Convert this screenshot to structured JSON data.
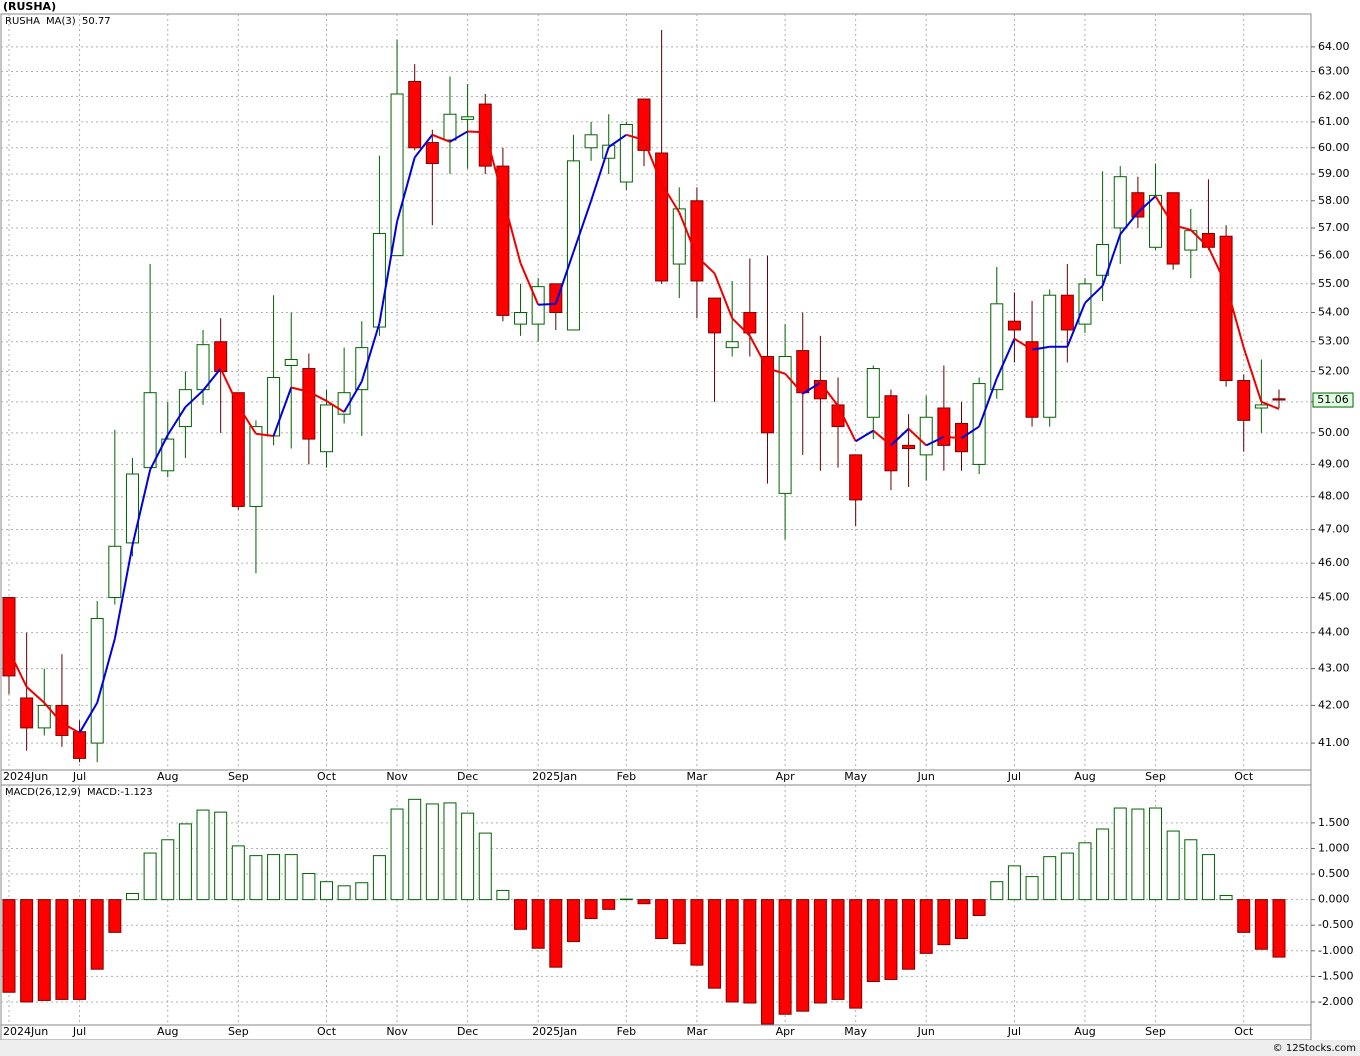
{
  "chart_data": [
    {
      "type": "candlestick",
      "title": "(RUSHA)",
      "symbol": "RUSHA",
      "log_scale": true,
      "grid": true,
      "up_color": "#006400",
      "down_color": "#ff0000",
      "symbol_color": "#008000",
      "last_label": "51.06",
      "categories": [
        "2024Jun",
        null,
        null,
        null,
        "Jul",
        null,
        null,
        null,
        null,
        "Aug",
        null,
        null,
        null,
        "Sep",
        null,
        null,
        null,
        null,
        "Oct",
        null,
        null,
        null,
        "Nov",
        null,
        null,
        null,
        "Dec",
        null,
        null,
        null,
        "2025Jan",
        null,
        null,
        null,
        null,
        "Feb",
        null,
        null,
        null,
        "Mar",
        null,
        null,
        null,
        null,
        "Apr",
        null,
        null,
        null,
        "May",
        null,
        null,
        null,
        "Jun",
        null,
        null,
        null,
        null,
        "Jul",
        null,
        null,
        null,
        "Aug",
        null,
        null,
        null,
        "Sep",
        null,
        null,
        null,
        null,
        "Oct",
        null,
        null
      ],
      "open": [
        45.0,
        42.2,
        41.4,
        42.0,
        41.3,
        41.0,
        45.0,
        46.6,
        48.9,
        48.8,
        50.2,
        51.4,
        53.0,
        51.3,
        47.7,
        49.9,
        52.2,
        52.1,
        49.4,
        50.6,
        51.4,
        53.5,
        56.0,
        62.6,
        60.2,
        60.3,
        61.1,
        61.7,
        59.3,
        53.6,
        53.6,
        55.0,
        53.4,
        60.0,
        59.6,
        58.7,
        61.9,
        59.8,
        55.7,
        58.0,
        54.5,
        52.8,
        54.0,
        52.5,
        48.1,
        52.7,
        51.7,
        50.9,
        49.3,
        50.5,
        51.2,
        49.6,
        49.3,
        50.8,
        50.3,
        49.0,
        51.4,
        53.7,
        53.0,
        50.5,
        54.6,
        53.6,
        55.3,
        57.0,
        58.3,
        56.3,
        58.3,
        56.2,
        56.8,
        56.7,
        51.7,
        50.8,
        51.1
      ],
      "high": [
        45.0,
        44.0,
        43.0,
        43.4,
        41.6,
        44.9,
        50.1,
        49.2,
        55.7,
        51.0,
        52.0,
        53.4,
        53.8,
        51.3,
        50.4,
        54.6,
        54.0,
        52.6,
        51.4,
        52.8,
        53.7,
        59.7,
        64.3,
        63.3,
        60.7,
        62.8,
        62.5,
        62.1,
        60.0,
        55.0,
        55.2,
        55.0,
        60.5,
        61.0,
        61.3,
        61.0,
        61.9,
        64.7,
        58.5,
        58.5,
        54.5,
        55.1,
        55.9,
        56.0,
        53.6,
        54.0,
        53.2,
        51.8,
        49.3,
        52.2,
        51.4,
        50.6,
        51.2,
        52.2,
        51.0,
        51.8,
        55.6,
        54.7,
        54.4,
        54.8,
        55.7,
        55.2,
        59.1,
        59.3,
        58.9,
        59.4,
        58.3,
        57.7,
        58.8,
        57.1,
        51.9,
        52.4,
        51.4
      ],
      "low": [
        42.3,
        40.8,
        41.2,
        40.9,
        40.5,
        40.5,
        44.8,
        46.2,
        48.8,
        48.6,
        49.2,
        50.9,
        50.0,
        47.6,
        45.7,
        49.6,
        49.5,
        49.0,
        48.9,
        50.3,
        49.9,
        53.2,
        56.0,
        59.9,
        57.1,
        59.0,
        59.2,
        59.0,
        53.7,
        53.2,
        53.0,
        53.4,
        53.4,
        59.5,
        59.0,
        58.4,
        59.3,
        55.0,
        54.5,
        53.8,
        51.0,
        52.5,
        52.5,
        48.4,
        46.7,
        49.3,
        48.8,
        48.9,
        47.1,
        49.8,
        48.2,
        48.3,
        48.5,
        48.8,
        48.8,
        48.7,
        51.1,
        52.3,
        50.2,
        50.2,
        52.3,
        53.3,
        54.4,
        55.7,
        57.0,
        56.2,
        55.5,
        55.2,
        56.2,
        51.5,
        49.4,
        50.0,
        50.8
      ],
      "close": [
        42.8,
        41.4,
        42.0,
        41.2,
        40.6,
        44.4,
        46.5,
        48.7,
        51.3,
        49.8,
        51.4,
        52.9,
        52.0,
        47.7,
        50.2,
        51.8,
        52.4,
        49.8,
        50.9,
        51.3,
        52.8,
        56.8,
        62.1,
        60.0,
        59.4,
        61.3,
        61.2,
        59.3,
        53.9,
        54.0,
        54.9,
        54.0,
        59.5,
        60.5,
        60.1,
        60.9,
        59.9,
        55.1,
        57.7,
        55.1,
        53.3,
        53.0,
        53.3,
        50.0,
        52.5,
        51.3,
        51.1,
        50.2,
        47.9,
        52.1,
        48.8,
        49.5,
        50.5,
        49.6,
        49.4,
        51.6,
        54.3,
        53.4,
        50.5,
        54.6,
        53.4,
        55.0,
        56.4,
        58.9,
        57.4,
        58.2,
        55.7,
        56.9,
        56.3,
        51.7,
        50.4,
        50.9,
        51.06
      ],
      "series": [
        {
          "name": "MA(3)",
          "color": "#0000dd",
          "up_color": "#0000dd",
          "down_color": "#ee0000",
          "last_label": "50.77",
          "values": [
            43.5,
            42.5,
            42.07,
            41.53,
            41.27,
            42.07,
            43.83,
            46.53,
            48.83,
            49.93,
            50.83,
            51.37,
            52.1,
            50.87,
            49.97,
            49.9,
            51.47,
            51.33,
            51.03,
            50.67,
            51.67,
            53.63,
            57.23,
            59.63,
            60.5,
            60.23,
            60.63,
            60.6,
            58.13,
            55.73,
            54.27,
            54.3,
            56.13,
            58.0,
            60.03,
            60.5,
            60.3,
            58.63,
            57.57,
            55.97,
            55.37,
            53.8,
            53.2,
            52.1,
            51.93,
            51.27,
            51.63,
            50.87,
            49.73,
            50.07,
            49.6,
            50.13,
            49.6,
            49.87,
            49.83,
            50.2,
            51.77,
            53.1,
            52.73,
            52.83,
            52.83,
            54.33,
            54.93,
            56.77,
            57.57,
            58.17,
            57.1,
            56.93,
            56.3,
            54.97,
            52.8,
            51.0,
            50.77
          ]
        }
      ],
      "ylim": [
        40.3,
        65.36
      ],
      "yticks": [
        {
          "value": 41,
          "label": "41.00"
        },
        {
          "value": 42,
          "label": "42.00"
        },
        {
          "value": 43,
          "label": "43.00"
        },
        {
          "value": 44,
          "label": "44.00"
        },
        {
          "value": 45,
          "label": "45.00"
        },
        {
          "value": 46,
          "label": "46.00"
        },
        {
          "value": 47,
          "label": "47.00"
        },
        {
          "value": 48,
          "label": "48.00"
        },
        {
          "value": 49,
          "label": "49.00"
        },
        {
          "value": 50,
          "label": "50.00"
        },
        {
          "value": 51,
          "label": "51.00"
        },
        {
          "value": 52,
          "label": "52.00"
        },
        {
          "value": 53,
          "label": "53.00"
        },
        {
          "value": 54,
          "label": "54.00"
        },
        {
          "value": 55,
          "label": "55.00"
        },
        {
          "value": 56,
          "label": "56.00"
        },
        {
          "value": 57,
          "label": "57.00"
        },
        {
          "value": 58,
          "label": "58.00"
        },
        {
          "value": 59,
          "label": "59.00"
        },
        {
          "value": 60,
          "label": "60.00"
        },
        {
          "value": 61,
          "label": "61.00"
        },
        {
          "value": 62,
          "label": "62.00"
        },
        {
          "value": 63,
          "label": "63.00"
        },
        {
          "value": 64,
          "label": "64.00"
        }
      ]
    },
    {
      "type": "bar",
      "name": "MACD(26,12,9)",
      "last_label": "MACD:-1.123",
      "label_color": "#0000dd",
      "grid": true,
      "up_color": "#006400",
      "down_color": "#ff0000",
      "categories": [
        "2024Jun",
        null,
        null,
        null,
        "Jul",
        null,
        null,
        null,
        null,
        "Aug",
        null,
        null,
        null,
        "Sep",
        null,
        null,
        null,
        null,
        "Oct",
        null,
        null,
        null,
        "Nov",
        null,
        null,
        null,
        "Dec",
        null,
        null,
        null,
        "2025Jan",
        null,
        null,
        null,
        null,
        "Feb",
        null,
        null,
        null,
        "Mar",
        null,
        null,
        null,
        null,
        "Apr",
        null,
        null,
        null,
        "May",
        null,
        null,
        null,
        "Jun",
        null,
        null,
        null,
        null,
        "Jul",
        null,
        null,
        null,
        "Aug",
        null,
        null,
        null,
        "Sep",
        null,
        null,
        null,
        null,
        "Oct",
        null,
        null
      ],
      "values": [
        -1.81,
        -2.0,
        -1.97,
        -1.95,
        -1.95,
        -1.36,
        -0.64,
        0.12,
        0.91,
        1.17,
        1.48,
        1.75,
        1.71,
        1.05,
        0.86,
        0.88,
        0.88,
        0.51,
        0.35,
        0.27,
        0.33,
        0.86,
        1.77,
        1.96,
        1.87,
        1.89,
        1.69,
        1.3,
        0.18,
        -0.58,
        -0.95,
        -1.32,
        -0.82,
        -0.37,
        -0.19,
        0.01,
        -0.08,
        -0.76,
        -0.86,
        -1.28,
        -1.73,
        -2.0,
        -2.02,
        -2.43,
        -2.24,
        -2.18,
        -2.02,
        -1.95,
        -2.12,
        -1.6,
        -1.56,
        -1.36,
        -1.05,
        -0.88,
        -0.76,
        -0.31,
        0.35,
        0.66,
        0.45,
        0.84,
        0.91,
        1.11,
        1.38,
        1.79,
        1.77,
        1.79,
        1.34,
        1.17,
        0.88,
        0.08,
        -0.64,
        -0.97,
        -1.123
      ],
      "ylim": [
        -2.45,
        2.24
      ],
      "yticks": [
        {
          "value": -2,
          "label": "-2.000"
        },
        {
          "value": -1.5,
          "label": "-1.500"
        },
        {
          "value": -1,
          "label": "-1.000"
        },
        {
          "value": -0.5,
          "label": "-0.500"
        },
        {
          "value": 0,
          "label": "0.000"
        },
        {
          "value": 0.5,
          "label": "0.500"
        },
        {
          "value": 1,
          "label": "1.000"
        },
        {
          "value": 1.5,
          "label": "1.500"
        }
      ]
    }
  ],
  "watermark": "© 12Stocks.com"
}
